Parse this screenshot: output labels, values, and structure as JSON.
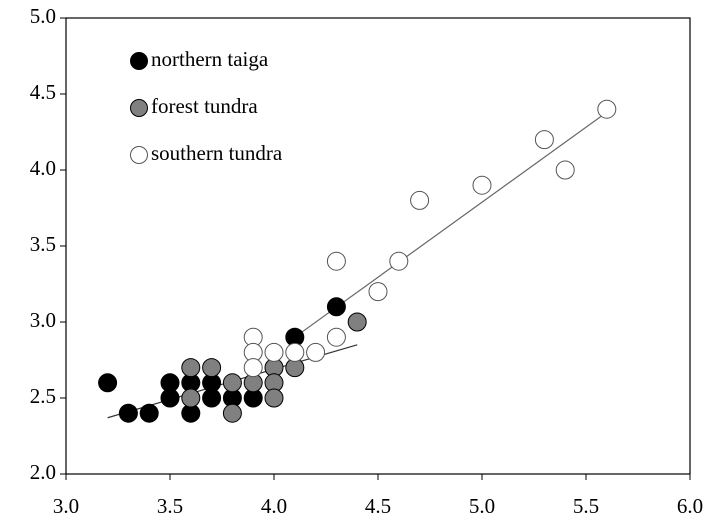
{
  "chart_data": {
    "type": "scatter",
    "xlim": [
      3.0,
      6.0
    ],
    "ylim": [
      2.0,
      5.0
    ],
    "xticks": [
      {
        "value": 3,
        "label": "3.0"
      },
      {
        "value": 3.5,
        "label": "3.5"
      },
      {
        "value": 4,
        "label": "4.0"
      },
      {
        "value": 4.5,
        "label": "4.5"
      },
      {
        "value": 5,
        "label": "5.0"
      },
      {
        "value": 5.5,
        "label": "5.5"
      },
      {
        "value": 6,
        "label": "6.0"
      }
    ],
    "yticks": [
      {
        "value": 2,
        "label": "2.0"
      },
      {
        "value": 2.5,
        "label": "2.5"
      },
      {
        "value": 3,
        "label": "3.0"
      },
      {
        "value": 3.5,
        "label": "3.5"
      },
      {
        "value": 4,
        "label": "4.0"
      },
      {
        "value": 4.5,
        "label": "4.5"
      },
      {
        "value": 5,
        "label": "5.0"
      }
    ],
    "legend": "upper left",
    "series": [
      {
        "name": "northern taiga",
        "color": "#000000",
        "x": [
          3.2,
          3.3,
          3.4,
          3.5,
          3.5,
          3.6,
          3.6,
          3.7,
          3.7,
          3.8,
          3.9,
          4.1,
          4.3
        ],
        "values": [
          2.6,
          2.4,
          2.4,
          2.6,
          2.5,
          2.6,
          2.4,
          2.6,
          2.5,
          2.5,
          2.5,
          2.9,
          3.1
        ]
      },
      {
        "name": "forest tundra",
        "color": "#808080",
        "x": [
          3.6,
          3.6,
          3.7,
          3.8,
          3.8,
          3.9,
          4.0,
          4.0,
          4.0,
          4.1,
          4.4
        ],
        "values": [
          2.7,
          2.5,
          2.7,
          2.6,
          2.4,
          2.6,
          2.7,
          2.6,
          2.5,
          2.7,
          3.0
        ]
      },
      {
        "name": "southern tundra",
        "color": "#ffffff",
        "x": [
          3.9,
          3.9,
          3.9,
          4.0,
          4.1,
          4.2,
          4.3,
          4.3,
          4.5,
          4.6,
          4.7,
          5.0,
          5.3,
          5.4,
          5.6
        ],
        "values": [
          2.9,
          2.8,
          2.7,
          2.8,
          2.8,
          2.8,
          2.9,
          3.4,
          3.2,
          3.4,
          3.8,
          3.9,
          4.2,
          4.0,
          4.4
        ]
      }
    ],
    "trendlines": [
      {
        "color": "#333333",
        "x": [
          3.2,
          4.4
        ],
        "values": [
          2.37,
          2.85
        ]
      },
      {
        "color": "#666666",
        "x": [
          4.1,
          5.6
        ],
        "values": [
          2.9,
          4.38
        ]
      }
    ]
  }
}
